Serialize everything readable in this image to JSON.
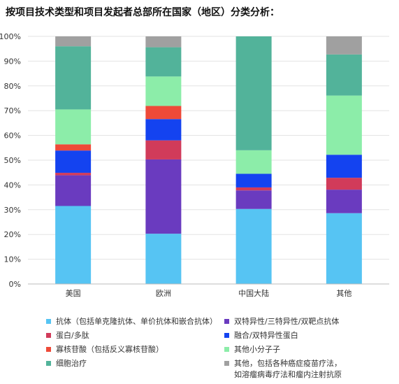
{
  "title": "按项目技术类型和项目发起者总部所在国家（地区）分类分析：",
  "chart_data": {
    "type": "bar",
    "stacked": true,
    "categories": [
      "美国",
      "欧洲",
      "中国大陆",
      "其他"
    ],
    "ylim": [
      0,
      100
    ],
    "yticks": [
      "0%",
      "10%",
      "20%",
      "30%",
      "40%",
      "50%",
      "60%",
      "70%",
      "80%",
      "90%",
      "100%"
    ],
    "grid": true,
    "legend_position": "bottom",
    "series": [
      {
        "name": "抗体（包括单克隆抗体、单价抗体和嵌合抗体）",
        "color": "#56C4F3",
        "values": [
          31.5,
          20.3,
          30.3,
          28.6
        ]
      },
      {
        "name": "双特异性/三特异性/双靶点抗体",
        "color": "#6A3BBF",
        "values": [
          12.4,
          30.0,
          7.5,
          9.5
        ]
      },
      {
        "name": "蛋白/多肽",
        "color": "#D13B5A",
        "values": [
          1.0,
          7.7,
          1.2,
          4.8
        ]
      },
      {
        "name": "融合/双特异性蛋白",
        "color": "#1443F0",
        "values": [
          9.0,
          8.6,
          5.5,
          9.3
        ]
      },
      {
        "name": "寡核苷酸（包括反义寡核苷酸）",
        "color": "#EE4A38",
        "values": [
          2.5,
          5.3,
          0.0,
          0.0
        ]
      },
      {
        "name": "其他小分子子",
        "color": "#8CEDA9",
        "values": [
          14.1,
          11.9,
          9.5,
          23.9
        ]
      },
      {
        "name": "细胞治疗",
        "color": "#52B39A",
        "values": [
          25.5,
          11.8,
          46.0,
          16.6
        ]
      },
      {
        "name": "其他，包括各种癌症疫苗疗法，\n如溶瘤病毒疗法和瘤内注射抗原",
        "color": "#A0A0A0",
        "values": [
          4.0,
          4.4,
          0.0,
          7.3
        ]
      }
    ]
  }
}
